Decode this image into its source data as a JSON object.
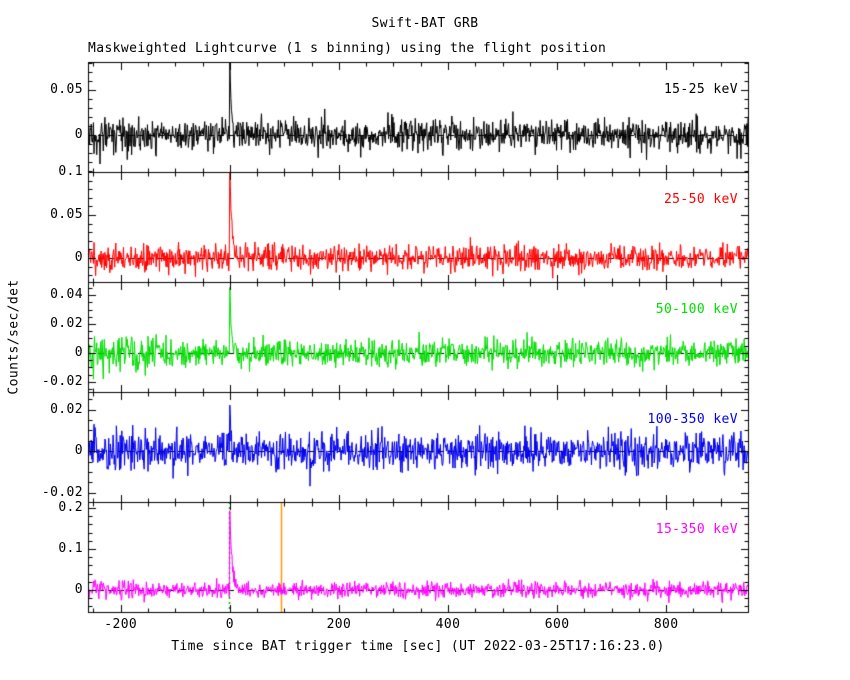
{
  "title": "Swift-BAT GRB",
  "subtitle": "Maskweighted Lightcurve (1 s binning) using the flight position",
  "ylabel": "Counts/sec/det",
  "xlabel": "Time since BAT trigger time [sec] (UT 2022-03-25T17:16:23.0)",
  "chart_data": {
    "type": "line",
    "title": "Swift-BAT GRB",
    "subtitle": "Maskweighted Lightcurve (1 s binning) using the flight position",
    "xlabel": "Time since BAT trigger time [sec] (UT 2022-03-25T17:16:23.0)",
    "ylabel": "Counts/sec/det",
    "x_range": [
      -260,
      950
    ],
    "x_ticks": [
      -200,
      0,
      200,
      400,
      600,
      800
    ],
    "x_tick_labels": [
      "-200",
      "0",
      "200",
      "400",
      "600",
      "800"
    ],
    "x_minor_step": 50,
    "grid": false,
    "legend": "labels inside each panel, right side",
    "panels": [
      {
        "label": "15-25 keV",
        "color": "#000000",
        "ylim": [
          -0.041,
          0.081
        ],
        "yticks": [
          0,
          0.05
        ],
        "ytick_labels": [
          "0",
          "0.05"
        ],
        "y_minor_step": 0.01,
        "baseline": 0,
        "noise_sigma": 0.0085,
        "early_sigma_factor": 1.25,
        "early_until_t": -150,
        "peak": {
          "t0": 0,
          "amplitude": 0.072,
          "decay_s": 3,
          "rise_s": 1
        },
        "zero_line_dashed": true
      },
      {
        "label": "25-50 keV",
        "color": "#ff0000",
        "ylim": [
          -0.028,
          0.1
        ],
        "yticks": [
          0,
          0.05,
          0.1
        ],
        "ytick_labels": [
          "0",
          "0.05",
          "0.1"
        ],
        "y_minor_step": 0.01,
        "baseline": 0,
        "noise_sigma": 0.0075,
        "early_sigma_factor": 1.15,
        "early_until_t": -150,
        "peak": {
          "t0": 0,
          "amplitude": 0.105,
          "decay_s": 4,
          "rise_s": 1
        },
        "zero_line_dashed": true
      },
      {
        "label": "50-100 keV",
        "color": "#00dd00",
        "ylim": [
          -0.027,
          0.049
        ],
        "yticks": [
          -0.02,
          0,
          0.02,
          0.04
        ],
        "ytick_labels": [
          "-0.02",
          "0",
          "0.02",
          "0.04"
        ],
        "y_minor_step": 0.005,
        "baseline": 0,
        "noise_sigma": 0.0045,
        "early_sigma_factor": 1.6,
        "early_until_t": -140,
        "peak": {
          "t0": 0,
          "amplitude": 0.043,
          "decay_s": 3,
          "rise_s": 1
        },
        "zero_line_dashed": true
      },
      {
        "label": "100-350 keV",
        "color": "#0000ee",
        "ylim": [
          -0.0245,
          0.0285
        ],
        "yticks": [
          -0.02,
          0,
          0.02
        ],
        "ytick_labels": [
          "-0.02",
          "0",
          "0.02"
        ],
        "y_minor_step": 0.005,
        "baseline": 0,
        "noise_sigma": 0.0045,
        "early_sigma_factor": 1.1,
        "early_until_t": -150,
        "peak": {
          "t0": 0,
          "amplitude": 0.018,
          "decay_s": 2,
          "rise_s": 1
        },
        "zero_line_dashed": true
      },
      {
        "label": "15-350 keV",
        "color": "#ff00ff",
        "ylim": [
          -0.054,
          0.215
        ],
        "yticks": [
          0,
          0.1,
          0.2
        ],
        "ytick_labels": [
          "0",
          "0.1",
          "0.2"
        ],
        "y_minor_step": 0.02,
        "baseline": 0,
        "noise_sigma": 0.01,
        "early_sigma_factor": 1.2,
        "early_until_t": -150,
        "peak": {
          "t0": 0,
          "amplitude": 0.205,
          "decay_s": 4,
          "rise_s": 1
        },
        "zero_line_dashed": true
      }
    ],
    "markers": [
      {
        "name": "green-dashed-vertical-marker",
        "panel_index": 4,
        "t": -1,
        "color": "#00bb00",
        "dash": [
          2,
          3
        ]
      },
      {
        "name": "orange-vertical-marker",
        "panel_index": 4,
        "t": 94,
        "color": "#ff9900",
        "dash": []
      }
    ],
    "colors": {
      "frame": "#000000",
      "background": "#ffffff",
      "zero_line": "#000000"
    }
  }
}
